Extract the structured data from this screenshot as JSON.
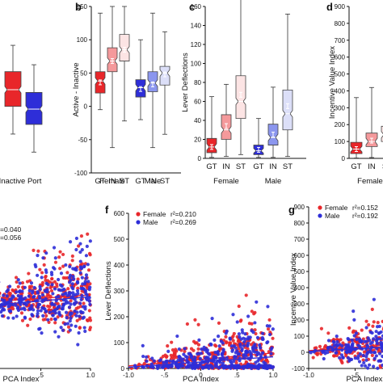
{
  "chart_data": [
    {
      "panel": "a",
      "type": "box",
      "categories": [
        "",
        ""
      ],
      "group_labels": [
        "Inactive Port"
      ],
      "series": [
        {
          "category": 0,
          "color": "#e8262a",
          "median": 20,
          "q1": 8,
          "q3": 33,
          "whisker_low": -12,
          "whisker_high": 52
        },
        {
          "category": 1,
          "color": "#2e2ed8",
          "median": 6,
          "q1": -5,
          "q3": 18,
          "whisker_low": -25,
          "whisker_high": 38
        }
      ]
    },
    {
      "panel": "b",
      "type": "box",
      "ylabel": "Active - Inactive",
      "ylim": [
        -100,
        150
      ],
      "yticks": [
        "150",
        "100",
        "50",
        "0",
        "-50",
        "-100"
      ],
      "categories": [
        "GT",
        "IN",
        "ST",
        "GT",
        "IN",
        "ST"
      ],
      "group_labels": [
        "Female",
        "Male"
      ],
      "series": [
        {
          "category": 0,
          "color": "#e8262a",
          "median": 38,
          "mean": 36,
          "q1": 20,
          "q3": 52,
          "whisker_low": -5,
          "whisker_high": 140
        },
        {
          "category": 1,
          "color": "#f4999b",
          "median": 68,
          "mean": 68,
          "q1": 52,
          "q3": 88,
          "whisker_low": -62,
          "whisker_high": 150
        },
        {
          "category": 2,
          "color": "#fce4e4",
          "median": 85,
          "mean": 85,
          "q1": 68,
          "q3": 108,
          "whisker_low": -22,
          "whisker_high": 150
        },
        {
          "category": 3,
          "color": "#2e2ed8",
          "median": 28,
          "mean": 26,
          "q1": 14,
          "q3": 40,
          "whisker_low": -20,
          "whisker_high": 100
        },
        {
          "category": 4,
          "color": "#8b96ee",
          "median": 35,
          "mean": 33,
          "q1": 22,
          "q3": 52,
          "whisker_low": -62,
          "whisker_high": 140
        },
        {
          "category": 5,
          "color": "#dcdff8",
          "median": 50,
          "mean": 48,
          "q1": 32,
          "q3": 60,
          "whisker_low": -42,
          "whisker_high": 112
        }
      ]
    },
    {
      "panel": "c",
      "type": "box",
      "ylabel": "Lever Deflections",
      "ylim": [
        0,
        160
      ],
      "yticks": [
        "160",
        "140",
        "120",
        "100",
        "80",
        "60",
        "40",
        "20",
        "0"
      ],
      "categories": [
        "GT",
        "IN",
        "ST",
        "GT",
        "IN",
        "ST"
      ],
      "group_labels": [
        "Female",
        "Male"
      ],
      "series": [
        {
          "category": 0,
          "color": "#e8262a",
          "median": 12,
          "mean": 12,
          "q1": 6,
          "q3": 21,
          "whisker_low": 1,
          "whisker_high": 65
        },
        {
          "category": 1,
          "color": "#f4999b",
          "median": 30,
          "mean": 34,
          "q1": 20,
          "q3": 46,
          "whisker_low": 2,
          "whisker_high": 78
        },
        {
          "category": 2,
          "color": "#fce4e4",
          "median": 60,
          "mean": 67,
          "q1": 42,
          "q3": 87,
          "whisker_low": 4,
          "whisker_high": 170
        },
        {
          "category": 3,
          "color": "#2e2ed8",
          "median": 8,
          "mean": 9,
          "q1": 4,
          "q3": 14,
          "whisker_low": 1,
          "whisker_high": 42
        },
        {
          "category": 4,
          "color": "#8b96ee",
          "median": 22,
          "mean": 25,
          "q1": 14,
          "q3": 36,
          "whisker_low": 1,
          "whisker_high": 75
        },
        {
          "category": 5,
          "color": "#dcdff8",
          "median": 47,
          "mean": 55,
          "q1": 30,
          "q3": 72,
          "whisker_low": 2,
          "whisker_high": 152
        }
      ]
    },
    {
      "panel": "d",
      "type": "box",
      "ylabel": "Incentive Value Index",
      "ylim": [
        0,
        900
      ],
      "yticks": [
        "900",
        "800",
        "700",
        "600",
        "500",
        "400",
        "300",
        "200",
        "100",
        "0"
      ],
      "categories": [
        "GT",
        "IN",
        "ST"
      ],
      "group_labels": [
        "Female"
      ],
      "series": [
        {
          "category": 0,
          "color": "#e8262a",
          "median": 55,
          "mean": 55,
          "q1": 28,
          "q3": 95,
          "whisker_low": 2,
          "whisker_high": 360
        },
        {
          "category": 1,
          "color": "#f4999b",
          "median": 100,
          "mean": 105,
          "q1": 70,
          "q3": 150,
          "whisker_low": 5,
          "whisker_high": 420
        },
        {
          "category": 2,
          "color": "#fce4e4",
          "median": 140,
          "mean": 145,
          "q1": 100,
          "q3": 190,
          "whisker_low": 10,
          "whisker_high": 900
        }
      ]
    },
    {
      "panel": "e",
      "type": "scatter",
      "xlabel": "PCA Index",
      "ylim": [
        -40,
        150
      ],
      "xlim": [
        -0.4,
        1.0
      ],
      "xticks": [
        "0",
        ".5",
        "1.0"
      ],
      "legend": [
        {
          "text": "=0.040",
          "color": "#e8262a"
        },
        {
          "text": "=0.056",
          "color": "#2e2ed8"
        }
      ],
      "series": [
        {
          "name": "",
          "color": "#e8262a",
          "seed": 11,
          "n": 360,
          "fit": [
            [
              -0.4,
              35
            ],
            [
              1.0,
              46
            ]
          ]
        },
        {
          "name": "",
          "color": "#2e2ed8",
          "seed": 23,
          "n": 360,
          "fit": [
            [
              -0.4,
              30
            ],
            [
              1.0,
              44
            ]
          ]
        }
      ]
    },
    {
      "panel": "f",
      "type": "scatter",
      "xlabel": "PCA Index",
      "ylabel": "Lever Deflections",
      "ylim": [
        0,
        600
      ],
      "yticks": [
        "600",
        "500",
        "400",
        "300",
        "200",
        "100",
        "0"
      ],
      "xlim": [
        -1.0,
        1.0
      ],
      "xticks": [
        "-1.0",
        "-.5",
        "0",
        ".5",
        "1.0"
      ],
      "legend": [
        {
          "name": "Female",
          "r2": "r²=0.210",
          "color": "#e8262a"
        },
        {
          "name": "Male",
          "r2": "r²=0.269",
          "color": "#2e2ed8"
        }
      ],
      "series": [
        {
          "name": "Female",
          "color": "#e8262a",
          "seed": 37,
          "n": 360,
          "fit": [
            [
              -1.0,
              10
            ],
            [
              1.0,
              60
            ]
          ]
        },
        {
          "name": "Male",
          "color": "#2e2ed8",
          "seed": 53,
          "n": 360,
          "fit": [
            [
              -1.0,
              5
            ],
            [
              1.0,
              45
            ]
          ]
        }
      ]
    },
    {
      "panel": "g",
      "type": "scatter",
      "xlabel": "PCA Index",
      "ylabel": "Incentive Value Index",
      "ylim": [
        -100,
        900
      ],
      "yticks": [
        "900",
        "800",
        "700",
        "600",
        "500",
        "400",
        "300",
        "200",
        "100",
        "0",
        "-100"
      ],
      "xlim": [
        -1.0,
        0.2
      ],
      "xticks": [
        "-1.0",
        "-.5"
      ],
      "legend": [
        {
          "name": "Female",
          "r2": "r²=0.152",
          "color": "#e8262a"
        },
        {
          "name": "Male",
          "r2": "r²=0.192",
          "color": "#2e2ed8"
        }
      ],
      "series": [
        {
          "name": "Female",
          "color": "#e8262a",
          "seed": 71,
          "n": 300,
          "fit": [
            [
              -1.0,
              10
            ],
            [
              0.2,
              60
            ]
          ]
        },
        {
          "name": "Male",
          "color": "#2e2ed8",
          "seed": 89,
          "n": 300,
          "fit": [
            [
              -1.0,
              5
            ],
            [
              0.2,
              45
            ]
          ]
        }
      ]
    }
  ]
}
